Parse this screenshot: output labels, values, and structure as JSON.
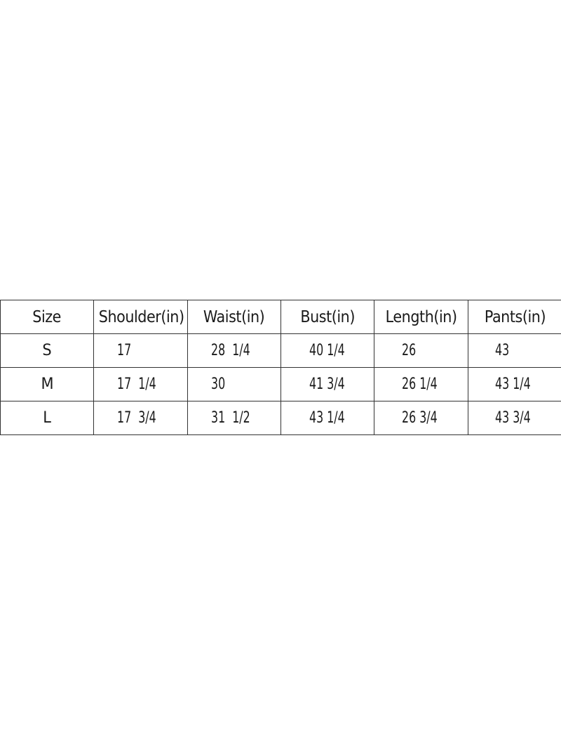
{
  "table": {
    "headers": [
      "Size",
      "Shoulder(in)",
      "Waist(in)",
      "Bust(in)",
      "Length(in)",
      "Pants(in)"
    ],
    "rows": [
      [
        "S",
        "17",
        "28  1/4",
        "40 1/4",
        "26",
        "43"
      ],
      [
        "M",
        "17  1/4",
        "30",
        "41 3/4",
        "26 1/4",
        "43 1/4"
      ],
      [
        "L",
        "17  3/4",
        "31  1/2",
        "43 1/4",
        "26 3/4",
        "43 3/4"
      ]
    ]
  }
}
